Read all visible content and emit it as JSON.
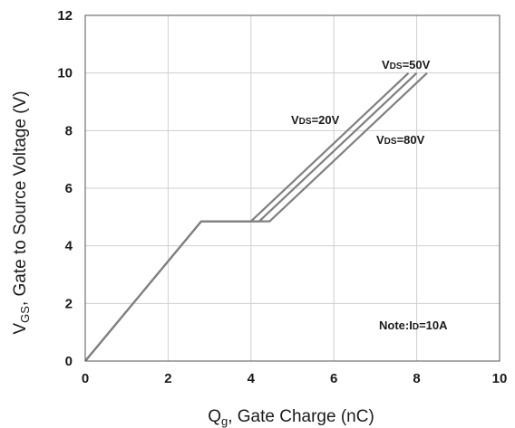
{
  "chart_data": {
    "type": "line",
    "title": "",
    "xlabel": {
      "main": "Q",
      "sub": "g",
      "rest": ", Gate Charge (nC)"
    },
    "ylabel": {
      "main": "V",
      "sub": "GS",
      "rest": ", Gate to Source Voltage (V)"
    },
    "xlim": [
      0,
      10
    ],
    "ylim": [
      0,
      12
    ],
    "xticks": [
      0,
      2,
      4,
      6,
      8,
      10
    ],
    "yticks": [
      0,
      2,
      4,
      6,
      8,
      10,
      12
    ],
    "grid": true,
    "series": [
      {
        "name": "VDS=20V",
        "x": [
          0,
          2.8,
          4.0,
          7.8
        ],
        "y": [
          0,
          4.85,
          4.85,
          10.0
        ]
      },
      {
        "name": "VDS=50V",
        "x": [
          0,
          2.8,
          4.2,
          8.0
        ],
        "y": [
          0,
          4.85,
          4.85,
          10.0
        ]
      },
      {
        "name": "VDS=80V",
        "x": [
          0,
          2.8,
          4.45,
          8.25
        ],
        "y": [
          0,
          4.85,
          4.85,
          10.0
        ]
      }
    ],
    "annotations": [
      {
        "text": "VDS=50V",
        "main": "V",
        "sub": "DS",
        "rest": "=50V"
      },
      {
        "text": "VDS=20V",
        "main": "V",
        "sub": "DS",
        "rest": "=20V"
      },
      {
        "text": "VDS=80V",
        "main": "V",
        "sub": "DS",
        "rest": "=80V"
      },
      {
        "text": "Note:ID=10A",
        "main": "Note:I",
        "sub": "D",
        "rest": "=10A"
      }
    ],
    "line_color": "#808080",
    "grid_color": "#cfcfcf",
    "axis_color": "#555555"
  }
}
